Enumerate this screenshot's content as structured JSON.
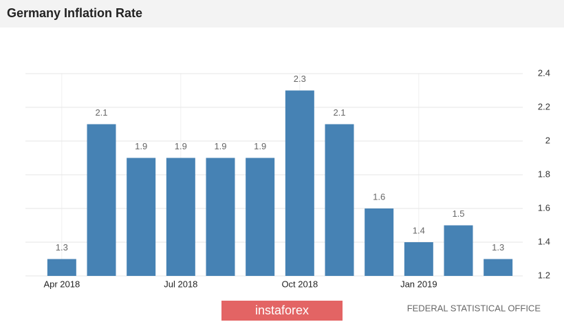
{
  "chart_data": {
    "type": "bar",
    "title": "Germany Inflation Rate",
    "categories": [
      "Apr 2018",
      null,
      null,
      "Jul 2018",
      null,
      null,
      "Oct 2018",
      null,
      null,
      "Jan 2019",
      null,
      null
    ],
    "values": [
      1.3,
      2.1,
      1.9,
      1.9,
      1.9,
      1.9,
      2.3,
      2.1,
      1.6,
      1.4,
      1.5,
      1.3
    ],
    "color": "#4682b4",
    "ylim": [
      1.2,
      2.4
    ],
    "yticks": [
      1.2,
      1.4,
      1.6,
      1.8,
      2,
      2.2,
      2.4
    ],
    "grid": true
  },
  "footer": {
    "watermark": "instaforex",
    "source": "FEDERAL STATISTICAL OFFICE"
  }
}
